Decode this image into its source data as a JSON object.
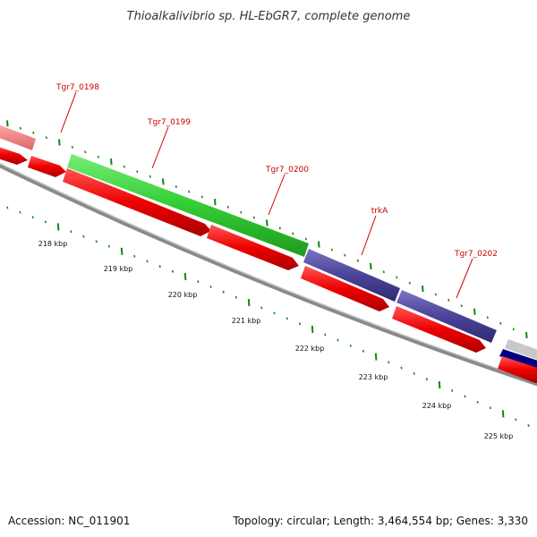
{
  "title": "Thioalkalivibrio sp. HL-EbGR7, complete genome",
  "footer": {
    "accession": "Accession: NC_011901",
    "stats": "Topology: circular; Length: 3,464,554 bp; Genes: 3,330"
  },
  "genes": [
    {
      "name": "Tgr7_0198",
      "color": "#00cc00"
    },
    {
      "name": "Tgr7_0199",
      "color": "#33cc33"
    },
    {
      "name": "Tgr7_0200",
      "color": "#33cc33"
    },
    {
      "name": "trkA",
      "color": "#4a4499"
    },
    {
      "name": "Tgr7_0202",
      "color": "#4a4499"
    }
  ],
  "scale_labels": [
    "218 kbp",
    "219 kbp",
    "220 kbp",
    "221 kbp",
    "222 kbp",
    "223 kbp",
    "224 kbp",
    "225 kbp"
  ],
  "colors": {
    "label_red": "#cc0000",
    "cds_red": "#ee0000",
    "green": "#33cc33",
    "purple": "#4a4499",
    "pink": "#ee7777",
    "navy": "#000080",
    "tick_green": "#118811",
    "backbone": "#777777"
  }
}
